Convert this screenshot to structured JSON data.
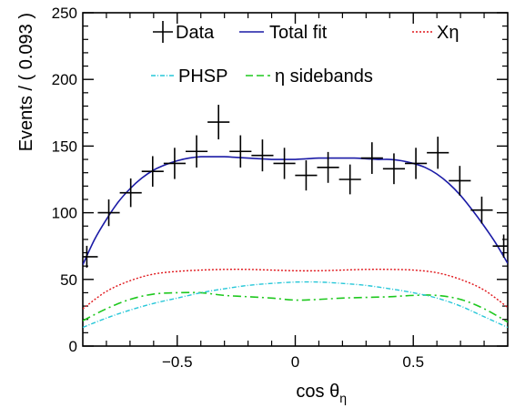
{
  "chart_data": {
    "type": "line",
    "xlabel_main": "cos θ",
    "xlabel_sub": "η",
    "ylabel": "Events / ( 0.093 )",
    "xlim": [
      -0.9,
      0.9
    ],
    "ylim": [
      0,
      250
    ],
    "x_ticks": [
      -0.5,
      0,
      0.5
    ],
    "x_tick_labels": [
      "−0.5",
      "0",
      "0.5"
    ],
    "y_ticks": [
      0,
      50,
      100,
      150,
      200,
      250
    ],
    "y_tick_labels": [
      "0",
      "50",
      "100",
      "150",
      "200",
      "250"
    ],
    "legend": [
      {
        "key": "data",
        "label": "Data",
        "style": "marker"
      },
      {
        "key": "total",
        "label": "Total fit",
        "style": "solid",
        "color": "#1a1aa6"
      },
      {
        "key": "xeta",
        "label": "Xη",
        "style": "dotted",
        "color": "#e0161b"
      },
      {
        "key": "phsp",
        "label": "PHSP",
        "style": "dashdotted",
        "color": "#27c7d8"
      },
      {
        "key": "sideband",
        "label": "η sidebands",
        "style": "dashed",
        "color": "#1ec81e"
      }
    ],
    "data_points": {
      "x": [
        -0.883,
        -0.79,
        -0.697,
        -0.604,
        -0.511,
        -0.418,
        -0.325,
        -0.232,
        -0.139,
        -0.046,
        0.046,
        0.139,
        0.232,
        0.325,
        0.418,
        0.511,
        0.604,
        0.697,
        0.79,
        0.883
      ],
      "y": [
        67,
        100,
        115,
        131,
        137,
        146,
        168,
        146,
        143,
        137,
        128,
        134,
        125,
        141,
        133,
        137,
        145,
        124,
        102,
        75
      ],
      "xerr": 0.0465
    },
    "series": [
      {
        "name": "Total fit",
        "color": "#1a1aa6",
        "x": [
          -0.9,
          -0.85,
          -0.8,
          -0.75,
          -0.7,
          -0.65,
          -0.6,
          -0.55,
          -0.5,
          -0.45,
          -0.4,
          -0.35,
          -0.3,
          -0.25,
          -0.2,
          -0.15,
          -0.1,
          -0.05,
          0,
          0.05,
          0.1,
          0.15,
          0.2,
          0.25,
          0.3,
          0.35,
          0.4,
          0.45,
          0.5,
          0.55,
          0.6,
          0.65,
          0.7,
          0.75,
          0.8,
          0.85,
          0.9
        ],
        "y": [
          61,
          80,
          95,
          108,
          118,
          126,
          132,
          136,
          139,
          141,
          142,
          142,
          142,
          141.5,
          141,
          140.5,
          140,
          140,
          140,
          140.5,
          141,
          141,
          141,
          141,
          140.5,
          140,
          140,
          139,
          137,
          134,
          129,
          122,
          113,
          102,
          90,
          77,
          62
        ]
      },
      {
        "name": "Xη",
        "color": "#e0161b",
        "x": [
          -0.9,
          -0.8,
          -0.7,
          -0.6,
          -0.5,
          -0.4,
          -0.3,
          -0.2,
          -0.1,
          0,
          0.1,
          0.2,
          0.3,
          0.4,
          0.5,
          0.6,
          0.7,
          0.8,
          0.9
        ],
        "y": [
          28,
          41,
          49,
          54,
          56,
          57,
          57.5,
          57.5,
          57,
          56.5,
          56.5,
          57,
          57.5,
          57.5,
          57,
          55,
          50,
          42,
          29
        ]
      },
      {
        "name": "PHSP",
        "color": "#27c7d8",
        "x": [
          -0.9,
          -0.8,
          -0.7,
          -0.6,
          -0.5,
          -0.4,
          -0.3,
          -0.2,
          -0.1,
          0,
          0.1,
          0.2,
          0.3,
          0.4,
          0.5,
          0.6,
          0.7,
          0.8,
          0.9
        ],
        "y": [
          14,
          21,
          27,
          32,
          36,
          40,
          43,
          45.5,
          47,
          48,
          48,
          47,
          45.5,
          43,
          40,
          36,
          30,
          22,
          14
        ]
      },
      {
        "name": "η sidebands",
        "color": "#1ec81e",
        "x": [
          -0.9,
          -0.8,
          -0.7,
          -0.6,
          -0.5,
          -0.4,
          -0.3,
          -0.2,
          -0.1,
          0,
          0.1,
          0.2,
          0.3,
          0.4,
          0.5,
          0.6,
          0.7,
          0.8,
          0.9
        ],
        "y": [
          19,
          28,
          35,
          39,
          40,
          40,
          38,
          37,
          36,
          34.5,
          35,
          36,
          36.5,
          37,
          38,
          38,
          35,
          28,
          18
        ]
      }
    ]
  }
}
